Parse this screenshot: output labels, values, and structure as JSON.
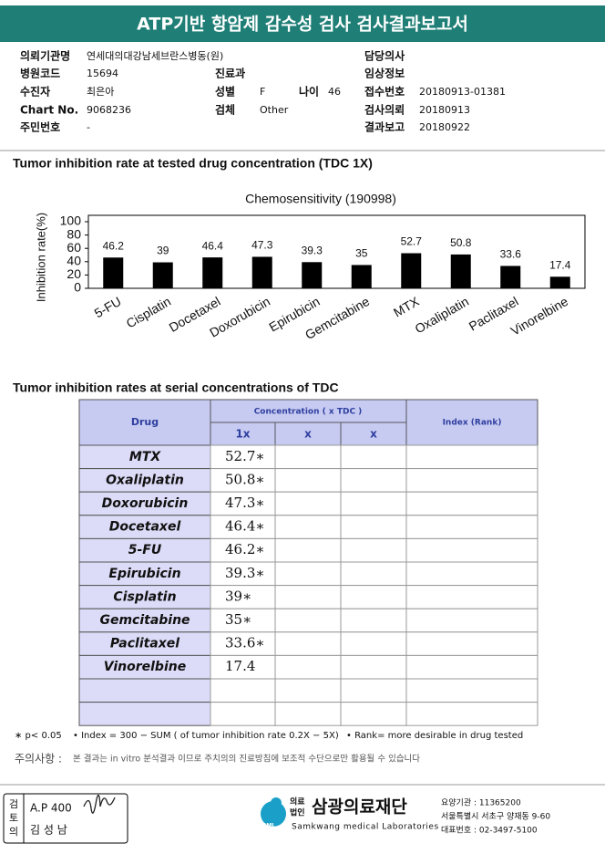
{
  "header": {
    "title": "ATP기반 항암제 감수성 검사 검사결과보고서"
  },
  "info": {
    "fields": [
      {
        "label": "의뢰기관명",
        "value": "연세대의대강남세브란스병동(원)"
      },
      {
        "label": "담당의사"
      },
      {
        "label": "병원코드",
        "value": "15694"
      },
      {
        "label": "진료과"
      },
      {
        "label": "임상정보"
      },
      {
        "label": "수진자",
        "value": "최은아"
      },
      {
        "label": "성별",
        "value": "F"
      },
      {
        "label": "나이",
        "value": "46"
      },
      {
        "label": "접수번호",
        "value": "20180913-01381"
      },
      {
        "label": "Chart No.",
        "value": "9068236"
      },
      {
        "label": "검체",
        "value": "Other"
      },
      {
        "label": "검사의뢰",
        "value": "20180913"
      },
      {
        "label": "주민번호",
        "value": "-"
      },
      {
        "label": "결과보고",
        "value": "20180922"
      }
    ]
  },
  "section1": {
    "title": "Tumor inhibition rate at tested drug concentration (TDC 1X)"
  },
  "chart_data": {
    "type": "bar",
    "title": "Chemosensitivity (190998)",
    "y_label": "Inhibition rate(%)",
    "categories": [
      "5-FU",
      "Cisplatin",
      "Docetaxel",
      "Doxorubicin",
      "Epirubicin",
      "Gemcitabine",
      "MTX",
      "Oxaliplatin",
      "Paclitaxel",
      "Vinorelbine"
    ],
    "values": [
      46.2,
      39,
      46.4,
      47.3,
      39.3,
      35,
      52.7,
      50.8,
      33.6,
      17.4
    ],
    "color": "#000000",
    "ylim": [
      0,
      100
    ],
    "yticks": [
      0,
      20,
      40,
      60,
      80,
      100
    ],
    "data_labels": true
  },
  "section2": {
    "title": "Tumor inhibition rates at serial concentrations of TDC"
  },
  "table": {
    "header": {
      "drug": "Drug",
      "concentration": "Concentration ( x TDC )",
      "levels": [
        "1x",
        "x",
        "x"
      ],
      "index": "Index (Rank)"
    },
    "rows": [
      [
        "MTX",
        "52.7∗"
      ],
      [
        "Oxaliplatin",
        "50.8∗"
      ],
      [
        "Doxorubicin",
        "47.3∗"
      ],
      [
        "Docetaxel",
        "46.4∗"
      ],
      [
        "5-FU",
        "46.2∗"
      ],
      [
        "Epirubicin",
        "39.3∗"
      ],
      [
        "Cisplatin",
        "39∗"
      ],
      [
        "Gemcitabine",
        "35∗"
      ],
      [
        "Paclitaxel",
        "33.6∗"
      ],
      [
        "Vinorelbine",
        "17.4"
      ]
    ]
  },
  "footnotes": [
    "∗ p< 0.05",
    "• Index = 300 − SUM ( of tumor inhibition rate 0.2X − 5X)",
    "• Rank= more desirable in drug tested"
  ],
  "notice": {
    "label": "주의사항 :",
    "text": "본 결과는 in vitro 분석결과 이므로 주치의의 진료방침에 보조적 수단으로만 활용될 수 있습니다"
  },
  "footer": {
    "reviewer_label": [
      "검",
      "토",
      "의"
    ],
    "reviewer_id": "A.P 400",
    "reviewer_name": "김 성 남",
    "org_prefix": [
      "의료",
      "법인"
    ],
    "org_name": "삼광의료재단",
    "org_en": "Samkwang medical Laboratories",
    "logo": "SML",
    "contact": [
      "요양기관 : 11365200",
      "서울특별시 서초구 양재동 9-60",
      "대표번호 : 02-3497-5100"
    ]
  }
}
